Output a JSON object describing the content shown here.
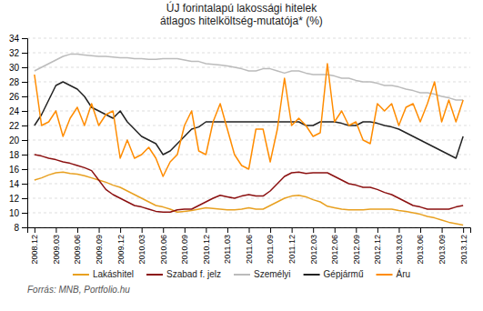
{
  "chart_data": {
    "type": "line",
    "title": "ÚJ forintalapú lakossági hitelek\nátlagos hitelköltség-mutatója* (%)",
    "annotations": [
      "Forrás: MNB, Portfolio.hu"
    ],
    "categories": [
      "2008.12",
      null,
      null,
      "2009.03",
      null,
      null,
      "2009.06",
      null,
      null,
      "2009.09",
      null,
      null,
      "2009.12",
      null,
      null,
      "2010.03",
      null,
      null,
      "2010.06",
      null,
      null,
      "2010.09",
      null,
      null,
      "2010.12",
      null,
      null,
      "2011.03",
      null,
      null,
      "2011.06",
      null,
      null,
      "2011.09",
      null,
      null,
      "2011.12",
      null,
      null,
      "2012.03",
      null,
      null,
      "2012.06",
      null,
      null,
      "2012.09",
      null,
      null,
      "2012.12",
      null,
      null,
      "2013.03",
      null,
      null,
      "2013.06",
      null,
      null,
      "2013.09",
      null,
      null,
      "2013.12"
    ],
    "ylim": [
      8,
      34
    ],
    "yticks": [
      8,
      10,
      12,
      14,
      16,
      18,
      20,
      22,
      24,
      26,
      28,
      30,
      32,
      34
    ],
    "grid": true,
    "legend": "bottom",
    "series": [
      {
        "name": "Lakáshitel",
        "color": "#E8A020",
        "values": [
          14.5,
          14.8,
          15.2,
          15.5,
          15.6,
          15.4,
          15.3,
          15.1,
          14.8,
          14.5,
          14.2,
          13.8,
          13.5,
          13.0,
          12.5,
          12.0,
          11.5,
          11.0,
          10.8,
          10.5,
          10.1,
          10.2,
          10.3,
          10.5,
          10.7,
          10.6,
          10.5,
          10.4,
          10.4,
          10.5,
          10.7,
          10.5,
          10.5,
          11.0,
          11.5,
          12.0,
          12.3,
          12.4,
          12.2,
          11.8,
          11.5,
          10.9,
          10.7,
          10.5,
          10.4,
          10.4,
          10.4,
          10.5,
          10.5,
          10.5,
          10.5,
          10.3,
          10.2,
          10.0,
          9.8,
          9.5,
          9.3,
          9.0,
          8.7,
          8.5,
          8.3
        ]
      },
      {
        "name": "Szabad f. jelz",
        "color": "#8B1010",
        "values": [
          18.0,
          17.8,
          17.5,
          17.3,
          17.0,
          16.8,
          16.5,
          16.2,
          15.8,
          14.5,
          13.2,
          12.5,
          12.0,
          11.5,
          11.0,
          10.8,
          10.5,
          10.2,
          10.1,
          10.1,
          10.4,
          10.5,
          10.5,
          11.0,
          11.5,
          12.0,
          12.4,
          12.2,
          12.0,
          12.3,
          12.5,
          12.3,
          12.3,
          13.0,
          14.0,
          15.0,
          15.5,
          15.6,
          15.4,
          15.5,
          15.5,
          15.5,
          15.0,
          14.5,
          14.0,
          13.8,
          13.5,
          13.5,
          13.2,
          12.8,
          12.5,
          12.0,
          11.5,
          11.0,
          10.8,
          10.5,
          10.5,
          10.5,
          10.5,
          10.8,
          11.0
        ]
      },
      {
        "name": "Személyi",
        "color": "#BBBBBB",
        "values": [
          29.5,
          30.0,
          30.5,
          31.0,
          31.5,
          31.8,
          31.8,
          31.7,
          31.6,
          31.5,
          31.5,
          31.4,
          31.3,
          31.3,
          31.2,
          31.2,
          31.1,
          31.1,
          31.2,
          31.2,
          31.2,
          31.0,
          30.8,
          30.8,
          30.5,
          30.4,
          30.3,
          30.2,
          30.0,
          29.8,
          29.5,
          29.5,
          29.8,
          29.8,
          29.5,
          29.2,
          29.5,
          29.5,
          29.2,
          29.0,
          29.0,
          29.0,
          28.8,
          28.5,
          28.5,
          28.2,
          28.0,
          28.0,
          27.8,
          27.5,
          27.5,
          27.3,
          27.0,
          26.8,
          26.5,
          26.5,
          26.3,
          26.0,
          25.8,
          25.5,
          25.5
        ]
      },
      {
        "name": "Gépjármű",
        "color": "#222222",
        "values": [
          22.0,
          23.5,
          25.5,
          27.5,
          28.0,
          27.5,
          27.0,
          26.0,
          24.5,
          24.0,
          23.5,
          23.0,
          24.0,
          22.5,
          21.5,
          20.5,
          20.0,
          19.5,
          18.0,
          18.5,
          19.5,
          20.5,
          21.5,
          21.8,
          22.5,
          22.5,
          22.5,
          22.5,
          22.5,
          22.5,
          22.5,
          22.5,
          22.5,
          22.5,
          22.5,
          22.5,
          22.5,
          22.5,
          22.0,
          22.0,
          22.5,
          22.5,
          22.5,
          22.3,
          22.0,
          22.0,
          22.5,
          22.5,
          22.3,
          22.0,
          21.8,
          21.5,
          21.0,
          20.5,
          20.0,
          19.5,
          19.0,
          18.5,
          18.0,
          17.5,
          20.5
        ]
      },
      {
        "name": "Áru",
        "color": "#FF8C00",
        "values": [
          29.0,
          22.0,
          22.5,
          24.0,
          20.5,
          23.0,
          24.5,
          22.0,
          25.0,
          22.0,
          23.5,
          24.0,
          17.5,
          20.0,
          17.5,
          18.0,
          19.0,
          17.5,
          15.0,
          17.0,
          18.0,
          22.0,
          24.0,
          18.5,
          18.0,
          22.5,
          25.0,
          21.5,
          18.0,
          16.5,
          16.0,
          21.5,
          21.5,
          17.0,
          21.5,
          28.5,
          22.0,
          23.0,
          22.0,
          20.5,
          21.0,
          30.5,
          22.5,
          24.0,
          22.0,
          22.5,
          20.0,
          19.5,
          25.0,
          24.0,
          25.0,
          22.0,
          24.5,
          25.0,
          22.5,
          25.0,
          28.0,
          22.5,
          25.5,
          22.5,
          25.5
        ]
      }
    ]
  }
}
